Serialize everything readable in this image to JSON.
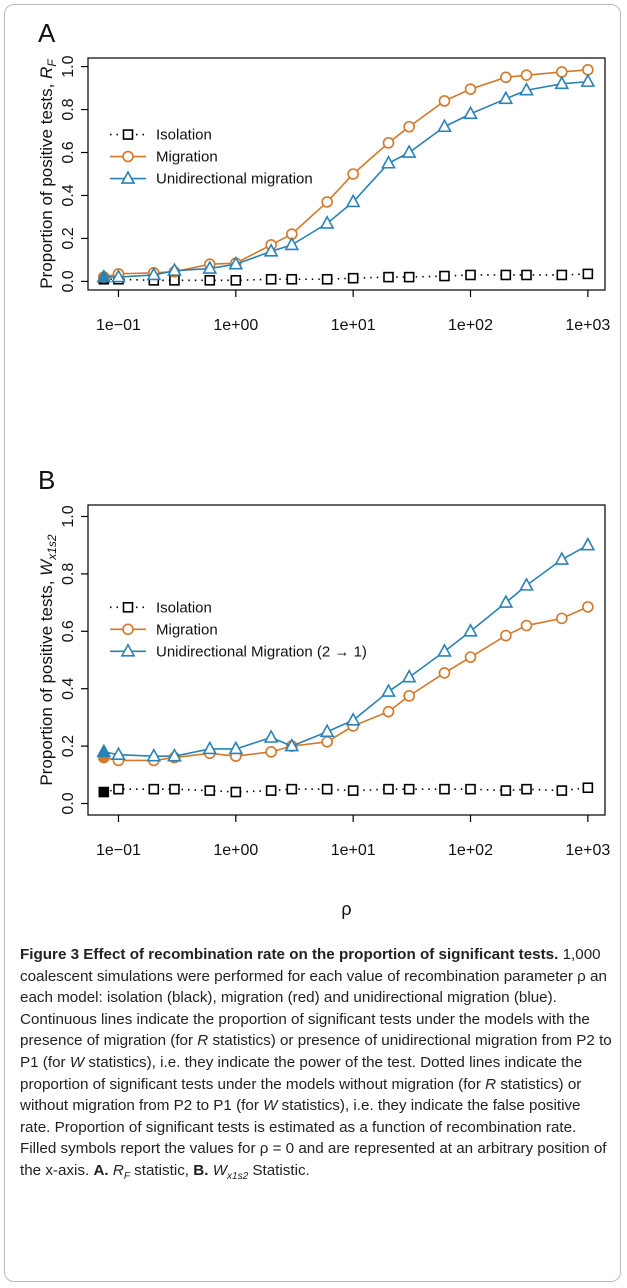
{
  "chart_data": [
    {
      "type": "line",
      "panel": "A",
      "y_label": "Proportion of positive tests, ",
      "y_label_symbol": "R",
      "y_label_sub": "F",
      "x": [
        0.075,
        0.1,
        0.2,
        0.3,
        0.6,
        1,
        2,
        3,
        6,
        10,
        20,
        30,
        60,
        100,
        200,
        300,
        600,
        1000
      ],
      "log_x": true,
      "filled_first": true,
      "legend": "upper left",
      "xlim": [
        0.055,
        1400
      ],
      "ylim": [
        -0.04,
        1.04
      ],
      "xticks": [
        {
          "value": 0.1,
          "label": "1e−01"
        },
        {
          "value": 1,
          "label": "1e+00"
        },
        {
          "value": 10,
          "label": "1e+01"
        },
        {
          "value": 100,
          "label": "1e+02"
        },
        {
          "value": 1000,
          "label": "1e+03"
        }
      ],
      "yticks": [
        {
          "value": 0,
          "label": "0.0"
        },
        {
          "value": 0.2,
          "label": "0.2"
        },
        {
          "value": 0.4,
          "label": "0.4"
        },
        {
          "value": 0.6,
          "label": "0.6"
        },
        {
          "value": 0.8,
          "label": "0.8"
        },
        {
          "value": 1,
          "label": "1.0"
        }
      ],
      "series": [
        {
          "name": "Isolation",
          "color": "#000000",
          "marker": "square",
          "dotted": true,
          "values": [
            0.01,
            0.01,
            0.005,
            0.005,
            0.005,
            0.005,
            0.01,
            0.01,
            0.01,
            0.015,
            0.02,
            0.02,
            0.025,
            0.03,
            0.03,
            0.03,
            0.03,
            0.035
          ]
        },
        {
          "name": "Migration",
          "color": "#d4782a",
          "marker": "circle",
          "dotted": false,
          "values": [
            0.02,
            0.035,
            0.04,
            0.045,
            0.08,
            0.085,
            0.17,
            0.22,
            0.37,
            0.5,
            0.645,
            0.72,
            0.84,
            0.895,
            0.95,
            0.96,
            0.975,
            0.985
          ]
        },
        {
          "name": "Unidirectional migration",
          "color": "#2a82b6",
          "marker": "triangle",
          "dotted": false,
          "values": [
            0.02,
            0.02,
            0.03,
            0.05,
            0.06,
            0.08,
            0.14,
            0.17,
            0.27,
            0.37,
            0.55,
            0.6,
            0.72,
            0.78,
            0.85,
            0.89,
            0.92,
            0.93
          ]
        }
      ]
    },
    {
      "type": "line",
      "panel": "B",
      "y_label": "Proportion of positive tests, ",
      "y_label_symbol": "W",
      "y_label_sub": "x1s2",
      "x_label": "ρ",
      "x": [
        0.075,
        0.1,
        0.2,
        0.3,
        0.6,
        1,
        2,
        3,
        6,
        10,
        20,
        30,
        60,
        100,
        200,
        300,
        600,
        1000
      ],
      "log_x": true,
      "filled_first": true,
      "legend": "upper left",
      "xlim": [
        0.055,
        1400
      ],
      "ylim": [
        -0.04,
        1.04
      ],
      "xticks": [
        {
          "value": 0.1,
          "label": "1e−01"
        },
        {
          "value": 1,
          "label": "1e+00"
        },
        {
          "value": 10,
          "label": "1e+01"
        },
        {
          "value": 100,
          "label": "1e+02"
        },
        {
          "value": 1000,
          "label": "1e+03"
        }
      ],
      "yticks": [
        {
          "value": 0,
          "label": "0.0"
        },
        {
          "value": 0.2,
          "label": "0.2"
        },
        {
          "value": 0.4,
          "label": "0.4"
        },
        {
          "value": 0.6,
          "label": "0.6"
        },
        {
          "value": 0.8,
          "label": "0.8"
        },
        {
          "value": 1,
          "label": "1.0"
        }
      ],
      "series": [
        {
          "name": "Isolation",
          "color": "#000000",
          "marker": "square",
          "dotted": true,
          "values": [
            0.04,
            0.05,
            0.05,
            0.05,
            0.045,
            0.04,
            0.045,
            0.05,
            0.05,
            0.045,
            0.05,
            0.05,
            0.05,
            0.05,
            0.045,
            0.05,
            0.045,
            0.055
          ]
        },
        {
          "name": "Migration",
          "color": "#d4782a",
          "marker": "circle",
          "dotted": false,
          "values": [
            0.16,
            0.15,
            0.15,
            0.16,
            0.175,
            0.165,
            0.18,
            0.2,
            0.215,
            0.27,
            0.32,
            0.375,
            0.455,
            0.51,
            0.585,
            0.62,
            0.645,
            0.685
          ]
        },
        {
          "name": "Unidirectional Migration (2 → 1)",
          "color": "#2a82b6",
          "marker": "triangle",
          "dotted": false,
          "values": [
            0.18,
            0.17,
            0.165,
            0.165,
            0.19,
            0.19,
            0.23,
            0.2,
            0.25,
            0.29,
            0.39,
            0.44,
            0.53,
            0.6,
            0.7,
            0.76,
            0.85,
            0.9
          ]
        }
      ]
    }
  ],
  "caption": {
    "title": "Figure 3 Effect of recombination rate on the proportion of significant tests.",
    "parts": [
      " 1,000 coalescent simulations were performed for each value of recombination parameter ρ an each model: isolation (black), migration (red) and unidirectional migration (blue). Continuous lines indicate the proportion of significant tests under the models with the presence of migration (for ",
      "R",
      " statistics) or presence of unidirectional migration from P2 to P1 (for ",
      "W",
      " statistics), i.e. they indicate the power of the test. Dotted lines indicate the proportion of significant tests under the models without migration (for ",
      "R",
      " statistics) or without migration from P2 to P1 (for ",
      "W",
      " statistics), i.e. they indicate the false positive rate. Proportion of significant tests is estimated as a function of recombination rate. Filled symbols report the values for ρ = 0 and are represented at an arbitrary position of the x-axis.",
      "A.",
      "R",
      "F",
      " statistic,",
      "B.",
      "W",
      "x1s2",
      " Statistic."
    ]
  }
}
